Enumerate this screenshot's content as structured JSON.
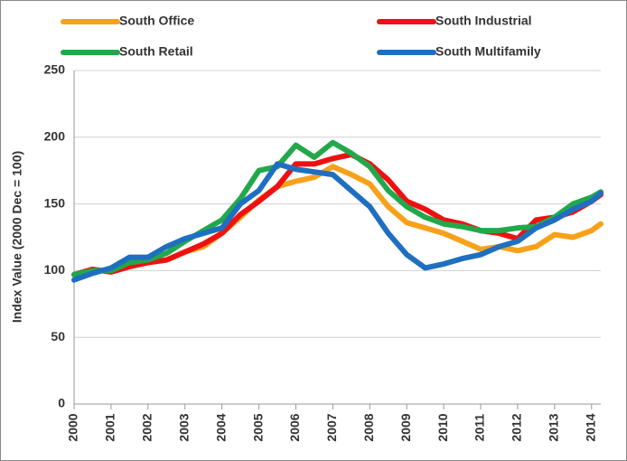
{
  "chart_data": {
    "type": "line",
    "y_label": "Index Value (2000 Dec = 100)",
    "x": [
      2000,
      2000.5,
      2001,
      2001.5,
      2002,
      2002.5,
      2003,
      2003.5,
      2004,
      2004.5,
      2005,
      2005.5,
      2006,
      2006.5,
      2007,
      2007.5,
      2008,
      2008.5,
      2009,
      2009.5,
      2010,
      2010.5,
      2011,
      2011.5,
      2012,
      2012.5,
      2013,
      2013.5,
      2014,
      2014.25
    ],
    "series": [
      {
        "name": "South Office",
        "color": "#f7a11a",
        "values": [
          97,
          100,
          100,
          104,
          106,
          108,
          114,
          118,
          128,
          140,
          153,
          163,
          167,
          170,
          178,
          172,
          165,
          148,
          136,
          132,
          128,
          122,
          116,
          118,
          115,
          118,
          127,
          125,
          130,
          135
        ]
      },
      {
        "name": "South Industrial",
        "color": "#ee1111",
        "values": [
          97,
          101,
          99,
          103,
          106,
          108,
          114,
          120,
          128,
          142,
          152,
          163,
          180,
          180,
          184,
          187,
          180,
          168,
          152,
          146,
          138,
          135,
          130,
          128,
          124,
          138,
          140,
          144,
          152,
          157
        ]
      },
      {
        "name": "South Retail",
        "color": "#22a84a",
        "values": [
          97,
          100,
          100,
          106,
          108,
          113,
          122,
          130,
          138,
          154,
          175,
          178,
          194,
          185,
          196,
          188,
          178,
          160,
          148,
          140,
          135,
          133,
          130,
          130,
          132,
          133,
          140,
          150,
          155,
          159
        ]
      },
      {
        "name": "South Multifamily",
        "color": "#1f6fc0",
        "values": [
          93,
          98,
          102,
          110,
          110,
          118,
          124,
          128,
          132,
          150,
          160,
          180,
          176,
          174,
          172,
          160,
          148,
          128,
          112,
          102,
          105,
          109,
          112,
          118,
          122,
          132,
          138,
          146,
          152,
          158
        ]
      }
    ],
    "xlim": [
      2000,
      2014.25
    ],
    "xticks": [
      2000,
      2001,
      2002,
      2003,
      2004,
      2005,
      2006,
      2007,
      2008,
      2009,
      2010,
      2011,
      2012,
      2013,
      2014
    ],
    "ylim": [
      0,
      250
    ],
    "yticks": [
      0,
      50,
      100,
      150,
      200,
      250
    ],
    "grid": true,
    "legend": "top"
  }
}
